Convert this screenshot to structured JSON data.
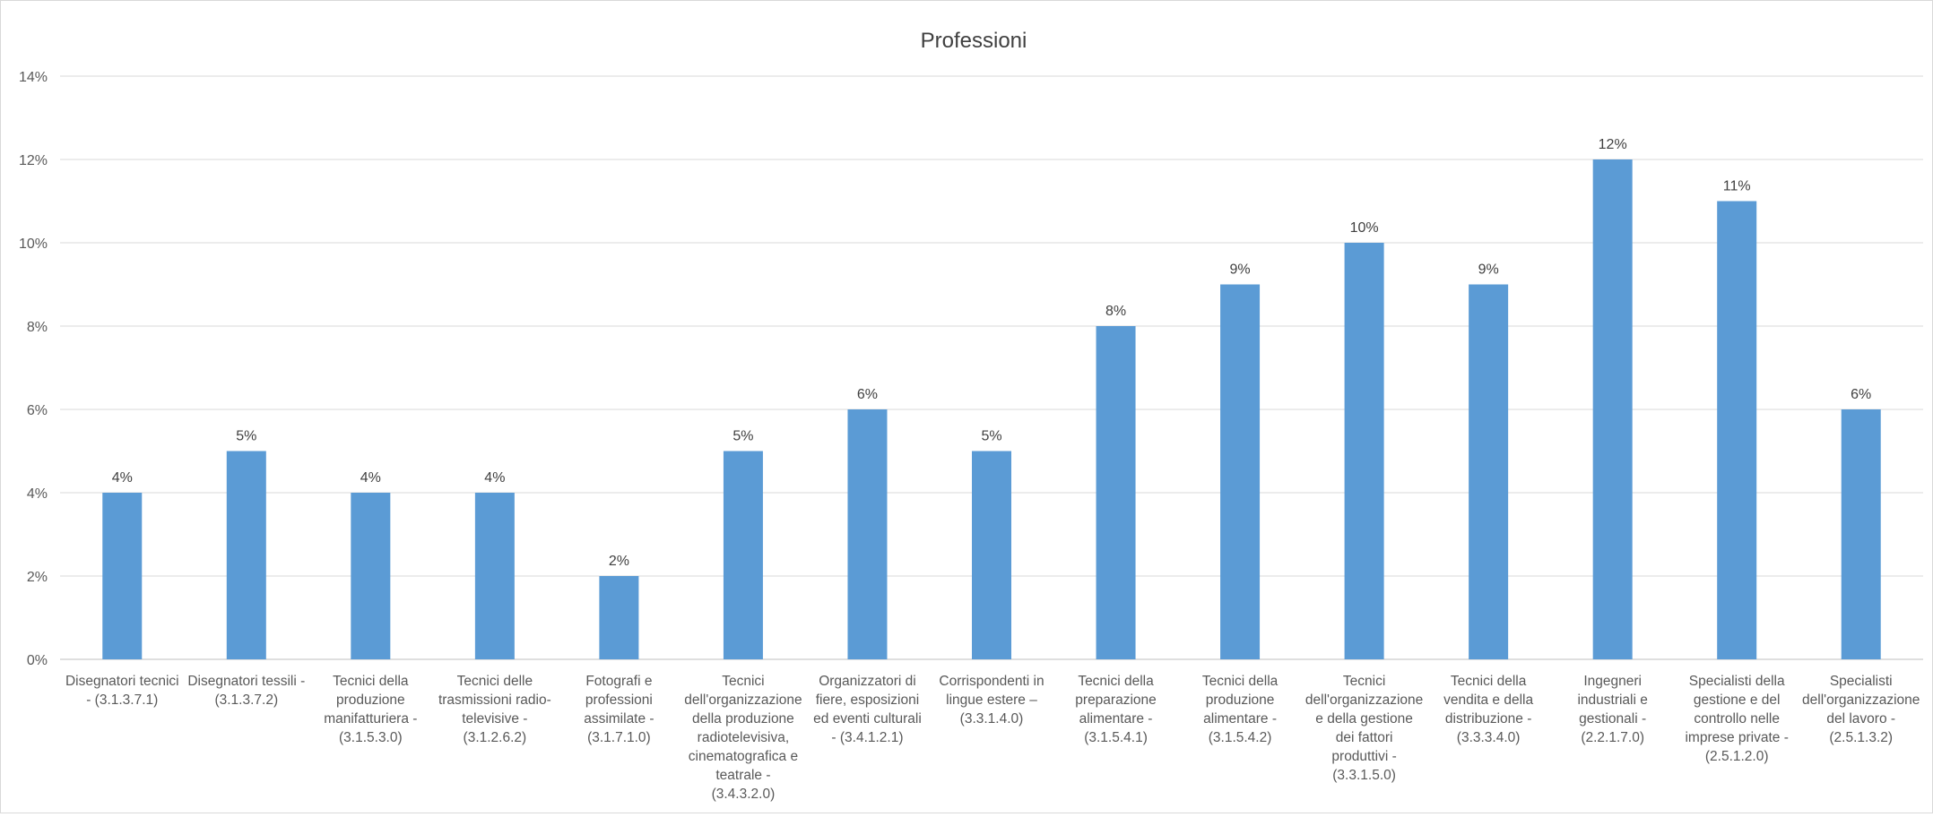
{
  "chart_data": {
    "type": "bar",
    "title": "Professioni",
    "xlabel": "",
    "ylabel": "",
    "ylim": [
      0,
      14
    ],
    "y_ticks": [
      "0%",
      "2%",
      "4%",
      "6%",
      "8%",
      "10%",
      "12%",
      "14%"
    ],
    "y_tick_values": [
      0,
      2,
      4,
      6,
      8,
      10,
      12,
      14
    ],
    "grid": true,
    "legend": "none",
    "bar_color": "#5b9bd5",
    "categories": [
      [
        "Disegnatori tecnici",
        "- (3.1.3.7.1)"
      ],
      [
        "Disegnatori tessili -",
        "(3.1.3.7.2)"
      ],
      [
        "Tecnici della",
        "produzione",
        "manifatturiera -",
        "(3.1.5.3.0)"
      ],
      [
        "Tecnici delle",
        "trasmissioni radio-",
        "televisive -",
        "(3.1.2.6.2)"
      ],
      [
        "Fotografi e",
        "professioni",
        "assimilate -",
        "(3.1.7.1.0)"
      ],
      [
        "Tecnici",
        "dell'organizzazione",
        "della produzione",
        "radiotelevisiva,",
        "cinematografica e",
        "teatrale -",
        "(3.4.3.2.0)"
      ],
      [
        "Organizzatori di",
        "fiere, esposizioni",
        "ed eventi culturali",
        "- (3.4.1.2.1)"
      ],
      [
        "Corrispondenti in",
        "lingue estere –",
        "(3.3.1.4.0)"
      ],
      [
        "Tecnici della",
        "preparazione",
        "alimentare -",
        "(3.1.5.4.1)"
      ],
      [
        "Tecnici della",
        "produzione",
        "alimentare -",
        "(3.1.5.4.2)"
      ],
      [
        "Tecnici",
        "dell'organizzazione",
        "e della gestione",
        "dei fattori",
        "produttivi -",
        "(3.3.1.5.0)"
      ],
      [
        "Tecnici della",
        "vendita e della",
        "distribuzione -",
        "(3.3.3.4.0)"
      ],
      [
        "Ingegneri",
        "industriali e",
        "gestionali -",
        "(2.2.1.7.0)"
      ],
      [
        "Specialisti della",
        "gestione e del",
        "controllo nelle",
        "imprese private -",
        "(2.5.1.2.0)"
      ],
      [
        "Specialisti",
        "dell'organizzazione",
        "del lavoro -",
        "(2.5.1.3.2)"
      ]
    ],
    "values": [
      4,
      5,
      4,
      4,
      2,
      5,
      6,
      5,
      8,
      9,
      10,
      9,
      12,
      11,
      6
    ],
    "data_labels": [
      "4%",
      "5%",
      "4%",
      "4%",
      "2%",
      "5%",
      "6%",
      "5%",
      "8%",
      "9%",
      "10%",
      "9%",
      "12%",
      "11%",
      "6%"
    ]
  }
}
